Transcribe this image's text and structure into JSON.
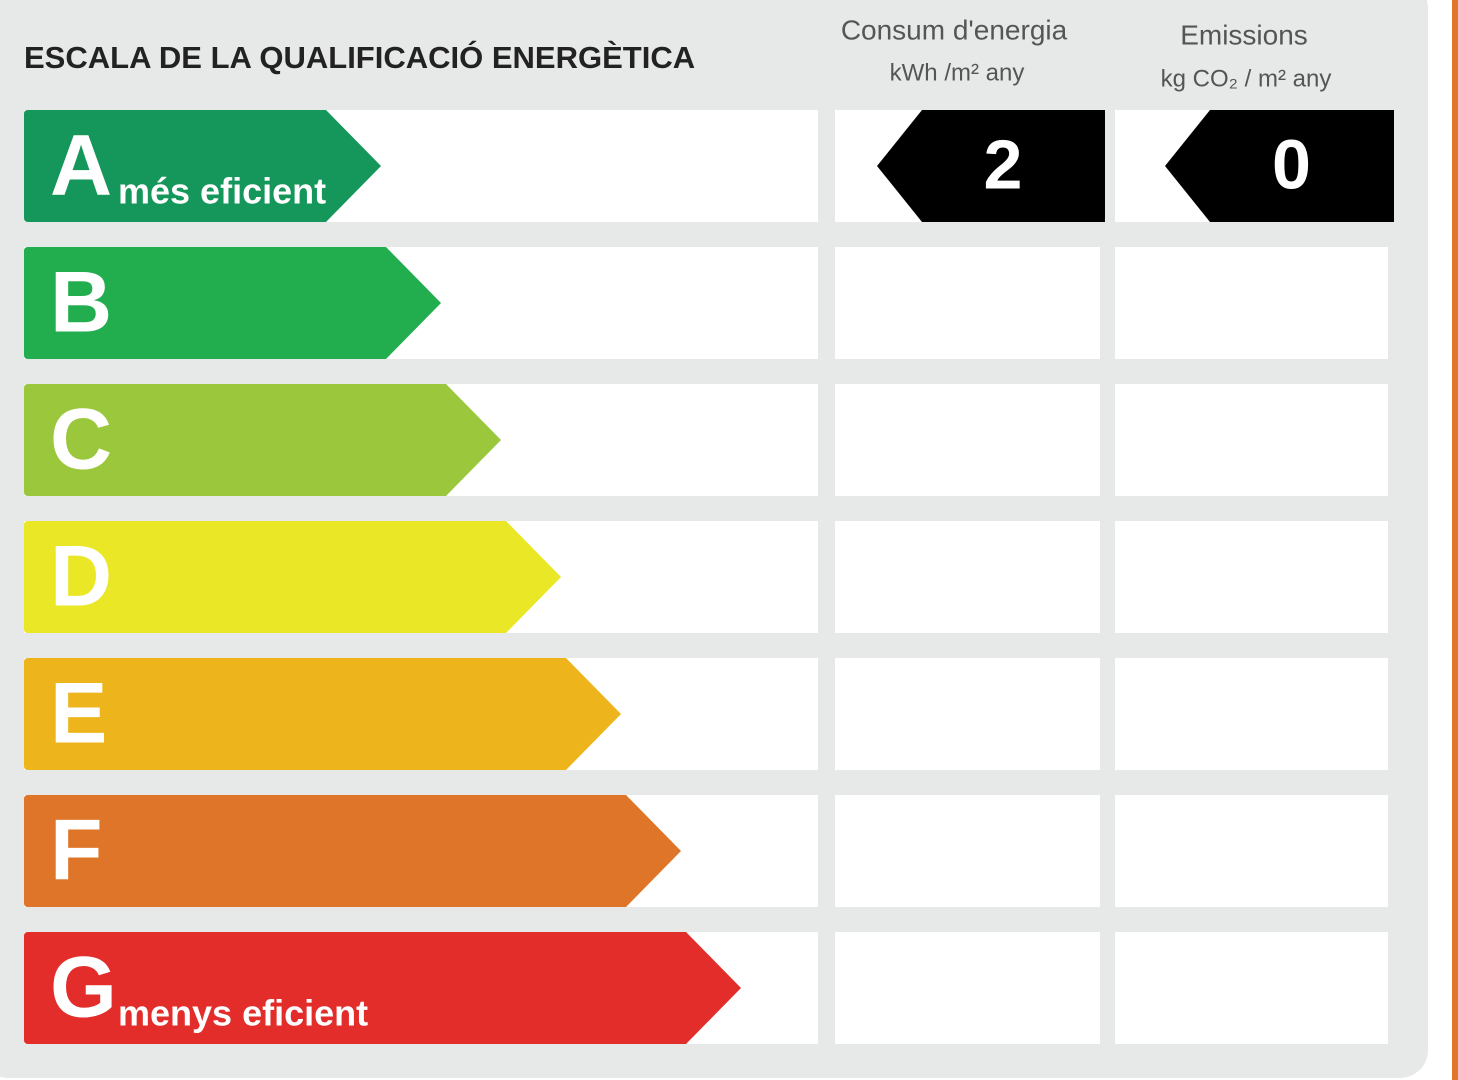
{
  "header": {
    "title": "ESCALA DE LA QUALIFICACIÓ ENERGÈTICA"
  },
  "columns": [
    {
      "title": "Consum d'energia",
      "unit": "kWh /m² any"
    },
    {
      "title": "Emissions",
      "unit": "kg CO₂ / m² any"
    }
  ],
  "grades": [
    {
      "letter": "A",
      "label": "més eficient",
      "color": "#15965a",
      "consumption": 2,
      "emissions": 0
    },
    {
      "letter": "B",
      "color": "#22ad4f"
    },
    {
      "letter": "C",
      "color": "#9bc73d"
    },
    {
      "letter": "D",
      "color": "#e9e726"
    },
    {
      "letter": "E",
      "color": "#eeb41c"
    },
    {
      "letter": "F",
      "color": "#df7529"
    },
    {
      "letter": "G",
      "label": "menys eficient",
      "color": "#e22d2a"
    }
  ]
}
